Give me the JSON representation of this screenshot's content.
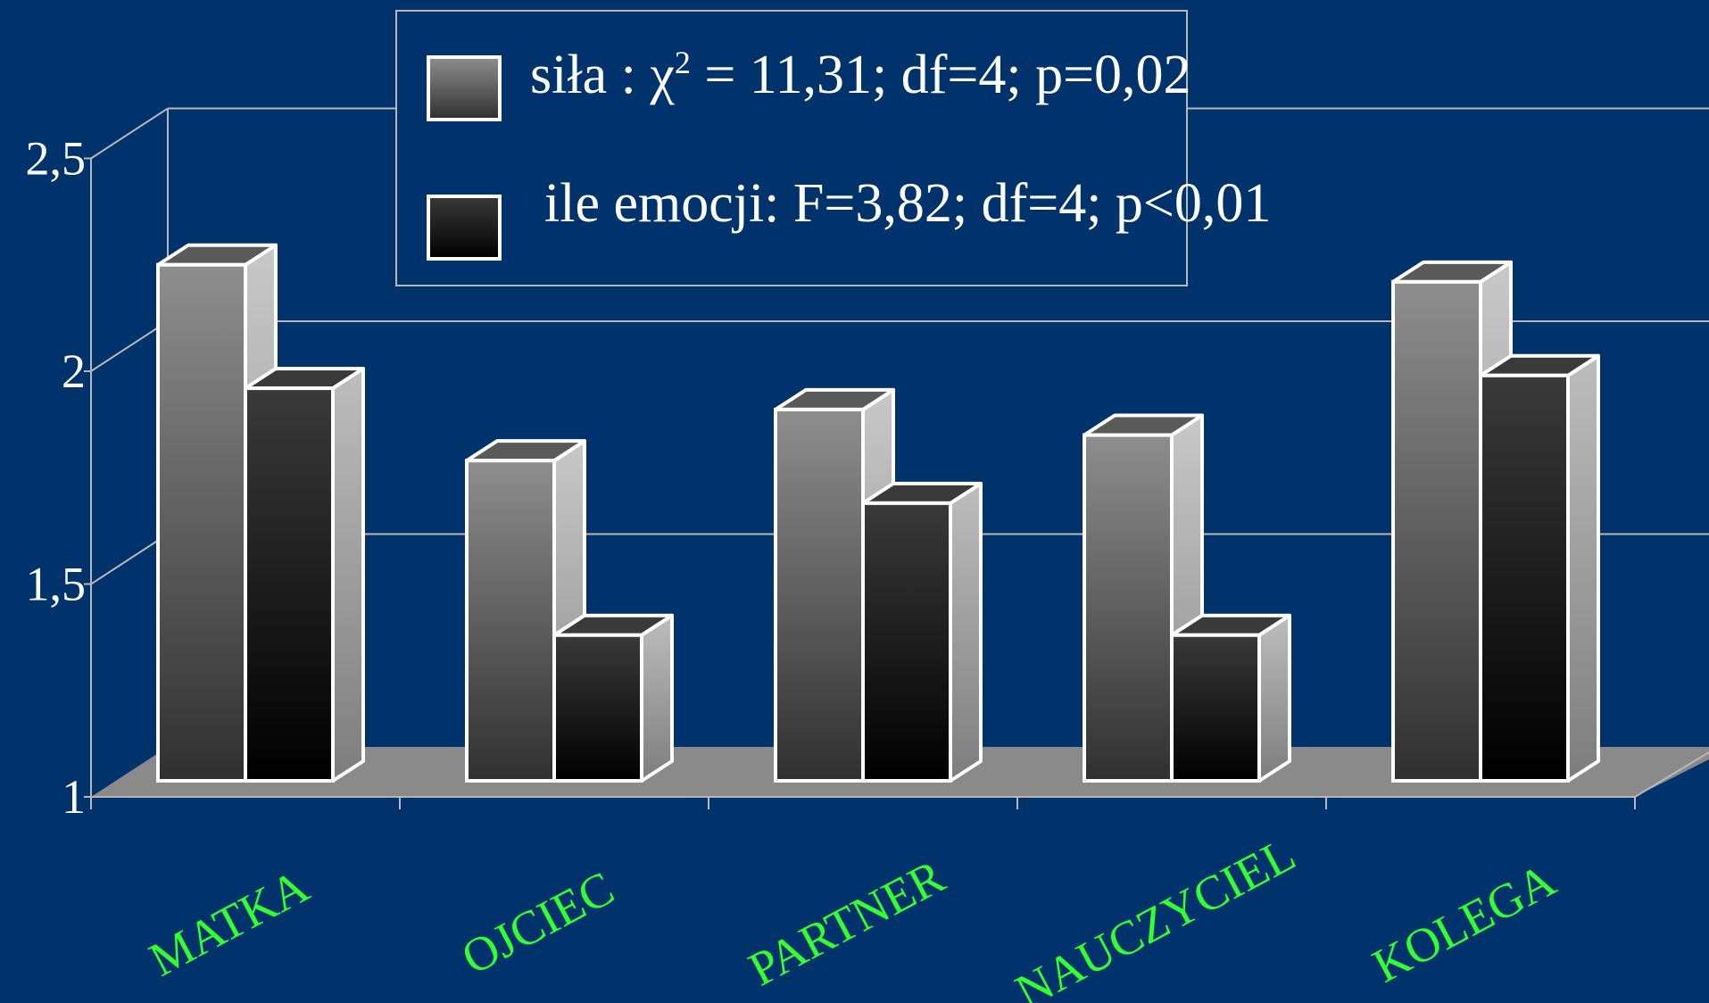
{
  "chart_data": {
    "type": "bar",
    "style": "3d-clustered-column",
    "categories": [
      "MATKA",
      "OJCIEC",
      "PARTNER",
      "NAUCZYCIEL",
      "KOLEGA"
    ],
    "series": [
      {
        "legend_label": "siła : χ² = 11,31; df=4; p=0,02",
        "values": [
          2.25,
          1.79,
          1.91,
          1.85,
          2.21
        ],
        "color": "#6e6e6e"
      },
      {
        "legend_label": "ile emocji: F=3,82; df=4; p<0,01",
        "values": [
          1.96,
          1.38,
          1.69,
          1.38,
          1.99
        ],
        "color": "#141414"
      }
    ],
    "ylim": [
      1,
      2.5
    ],
    "y_ticks": [
      "1",
      "1,5",
      "2",
      "2,5"
    ],
    "y_tick_values": [
      1,
      1.5,
      2,
      2.5
    ],
    "grid": true,
    "legend_position": "top-center",
    "colors": {
      "background": "#00336b",
      "floor": "#8a8a8a",
      "grid": "#b8b8b8",
      "category_label": "#33ff33",
      "bar_edge": "#ffffff"
    }
  }
}
